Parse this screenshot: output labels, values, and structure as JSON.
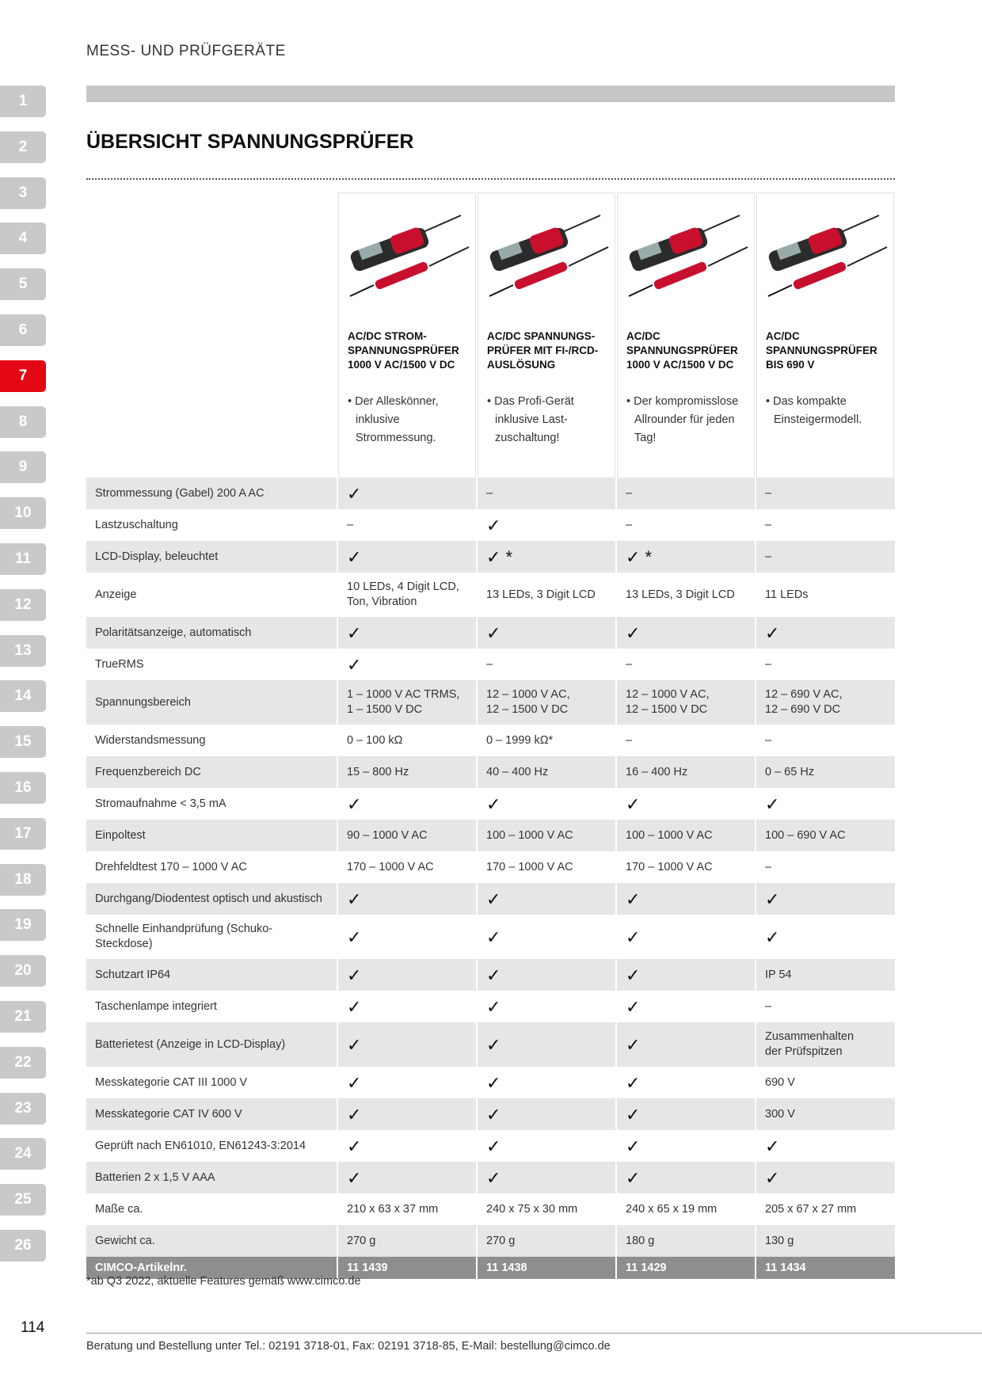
{
  "header": {
    "section": "MESS- UND PRÜFGERÄTE",
    "title": "ÜBERSICHT SPANNUNGSPRÜFER"
  },
  "tabs": [
    {
      "label": "1"
    },
    {
      "label": "2"
    },
    {
      "label": "3"
    },
    {
      "label": "4"
    },
    {
      "label": "5"
    },
    {
      "label": "6"
    },
    {
      "label": "7",
      "active": true
    },
    {
      "label": "8"
    },
    {
      "label": "9"
    },
    {
      "label": "10"
    },
    {
      "label": "11"
    },
    {
      "label": "12"
    },
    {
      "label": "13"
    },
    {
      "label": "14"
    },
    {
      "label": "15"
    },
    {
      "label": "16"
    },
    {
      "label": "17"
    },
    {
      "label": "18"
    },
    {
      "label": "19"
    },
    {
      "label": "20"
    },
    {
      "label": "21"
    },
    {
      "label": "22"
    },
    {
      "label": "23"
    },
    {
      "label": "24"
    },
    {
      "label": "25"
    },
    {
      "label": "26"
    }
  ],
  "products": [
    {
      "name_lines": [
        "AC/DC STROM-",
        "SPANNUNGSPRÜFER",
        "1000 V AC/1500 V DC"
      ],
      "feature": "Der Alleskönner, inklusive Strommessung."
    },
    {
      "name_lines": [
        "AC/DC SPANNUNGS-",
        "PRÜFER MIT FI-/RCD-",
        "AUSLÖSUNG"
      ],
      "feature": "Das Profi-Gerät inklusive Last-zuschaltung!"
    },
    {
      "name_lines": [
        "AC/DC",
        "SPANNUNGSPRÜFER",
        "1000 V AC/1500 V DC"
      ],
      "feature": "Der kompromisslose Allrounder für jeden Tag!"
    },
    {
      "name_lines": [
        "AC/DC",
        "SPANNUNGSPRÜFER",
        "BIS 690 V"
      ],
      "feature": "Das kompakte Einsteigermodell."
    }
  ],
  "table": {
    "rows": [
      [
        "Strommessung (Gabel) 200 A AC",
        "✓",
        "–",
        "–",
        "–"
      ],
      [
        "Lastzuschaltung",
        "–",
        "✓",
        "–",
        "–"
      ],
      [
        "LCD-Display, beleuchtet",
        "✓",
        "✓ *",
        "✓ *",
        "–"
      ],
      [
        "Anzeige",
        "10 LEDs, 4 Digit LCD,\nTon, Vibration",
        "13 LEDs, 3 Digit LCD",
        "13 LEDs, 3 Digit LCD",
        "11 LEDs"
      ],
      [
        "Polaritätsanzeige, automatisch",
        "✓",
        "✓",
        "✓",
        "✓"
      ],
      [
        "TrueRMS",
        "✓",
        "–",
        "–",
        "–"
      ],
      [
        "Spannungsbereich",
        "1 – 1000 V AC TRMS,\n1 – 1500 V DC",
        "12 – 1000 V AC,\n12 – 1500 V DC",
        "12 – 1000 V AC,\n12 – 1500 V DC",
        "12 – 690 V AC,\n12 – 690 V DC"
      ],
      [
        "Widerstandsmessung",
        "0 – 100 kΩ",
        "0 – 1999 kΩ*",
        "–",
        "–"
      ],
      [
        "Frequenzbereich DC",
        "15 – 800 Hz",
        "40 – 400 Hz",
        "16 – 400 Hz",
        "0 – 65 Hz"
      ],
      [
        "Stromaufnahme < 3,5 mA",
        "✓",
        "✓",
        "✓",
        "✓"
      ],
      [
        "Einpoltest",
        "90 – 1000 V AC",
        "100 – 1000 V AC",
        "100 – 1000 V AC",
        "100 – 690 V AC"
      ],
      [
        "Drehfeldtest 170 – 1000 V AC",
        "170 – 1000 V AC",
        "170 – 1000 V AC",
        "170 – 1000 V AC",
        "–"
      ],
      [
        "Durchgang/Diodentest optisch und akustisch",
        "✓",
        "✓",
        "✓",
        "✓"
      ],
      [
        "Schnelle Einhandprüfung (Schuko-Steckdose)",
        "✓",
        "✓",
        "✓",
        "✓"
      ],
      [
        "Schutzart IP64",
        "✓",
        "✓",
        "✓",
        "IP 54"
      ],
      [
        "Taschenlampe integriert",
        "✓",
        "✓",
        "✓",
        "–"
      ],
      [
        "Batterietest (Anzeige in LCD-Display)",
        "✓",
        "✓",
        "✓",
        "Zusammenhalten\nder Prüfspitzen"
      ],
      [
        "Messkategorie CAT III 1000 V",
        "✓",
        "✓",
        "✓",
        "690 V"
      ],
      [
        "Messkategorie CAT IV 600 V",
        "✓",
        "✓",
        "✓",
        "300 V"
      ],
      [
        "Geprüft nach EN61010, EN61243-3:2014",
        "✓",
        "✓",
        "✓",
        "✓"
      ],
      [
        "Batterien 2 x 1,5 V AAA",
        "✓",
        "✓",
        "✓",
        "✓"
      ],
      [
        "Maße ca.",
        "210 x 63 x 37 mm",
        "240 x 75 x 30 mm",
        "240 x 65 x 19 mm",
        "205 x 67 x 27 mm"
      ],
      [
        "Gewicht ca.",
        "270 g",
        "270 g",
        "180 g",
        "130 g"
      ]
    ],
    "footer_row": [
      "CIMCO-Artikelnr.",
      "11 1439",
      "11 1438",
      "11 1429",
      "11 1434"
    ]
  },
  "footnote": "*ab Q3 2022, aktuelle Features gemäß www.cimco.de",
  "page_number": "114",
  "footer": "Beratung und Bestellung unter Tel.: 02191 3718-01, Fax: 02191 3718-85, E-Mail: bestellung@cimco.de"
}
